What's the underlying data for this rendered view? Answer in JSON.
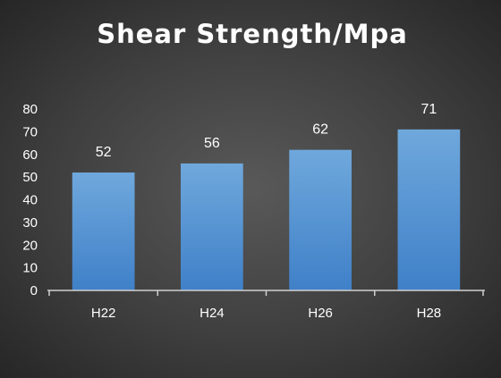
{
  "chart_data": {
    "type": "bar",
    "title": "Shear Strength/Mpa",
    "categories": [
      "H22",
      "H24",
      "H26",
      "H28"
    ],
    "values": [
      52,
      56,
      62,
      71
    ],
    "data_labels": [
      "52",
      "56",
      "62",
      "71"
    ],
    "yticks": [
      0,
      10,
      20,
      30,
      40,
      50,
      60,
      70,
      80
    ],
    "ylim": [
      0,
      80
    ],
    "xlabel": "",
    "ylabel": "",
    "grid": false,
    "bar_color": "#5b9bd5"
  }
}
